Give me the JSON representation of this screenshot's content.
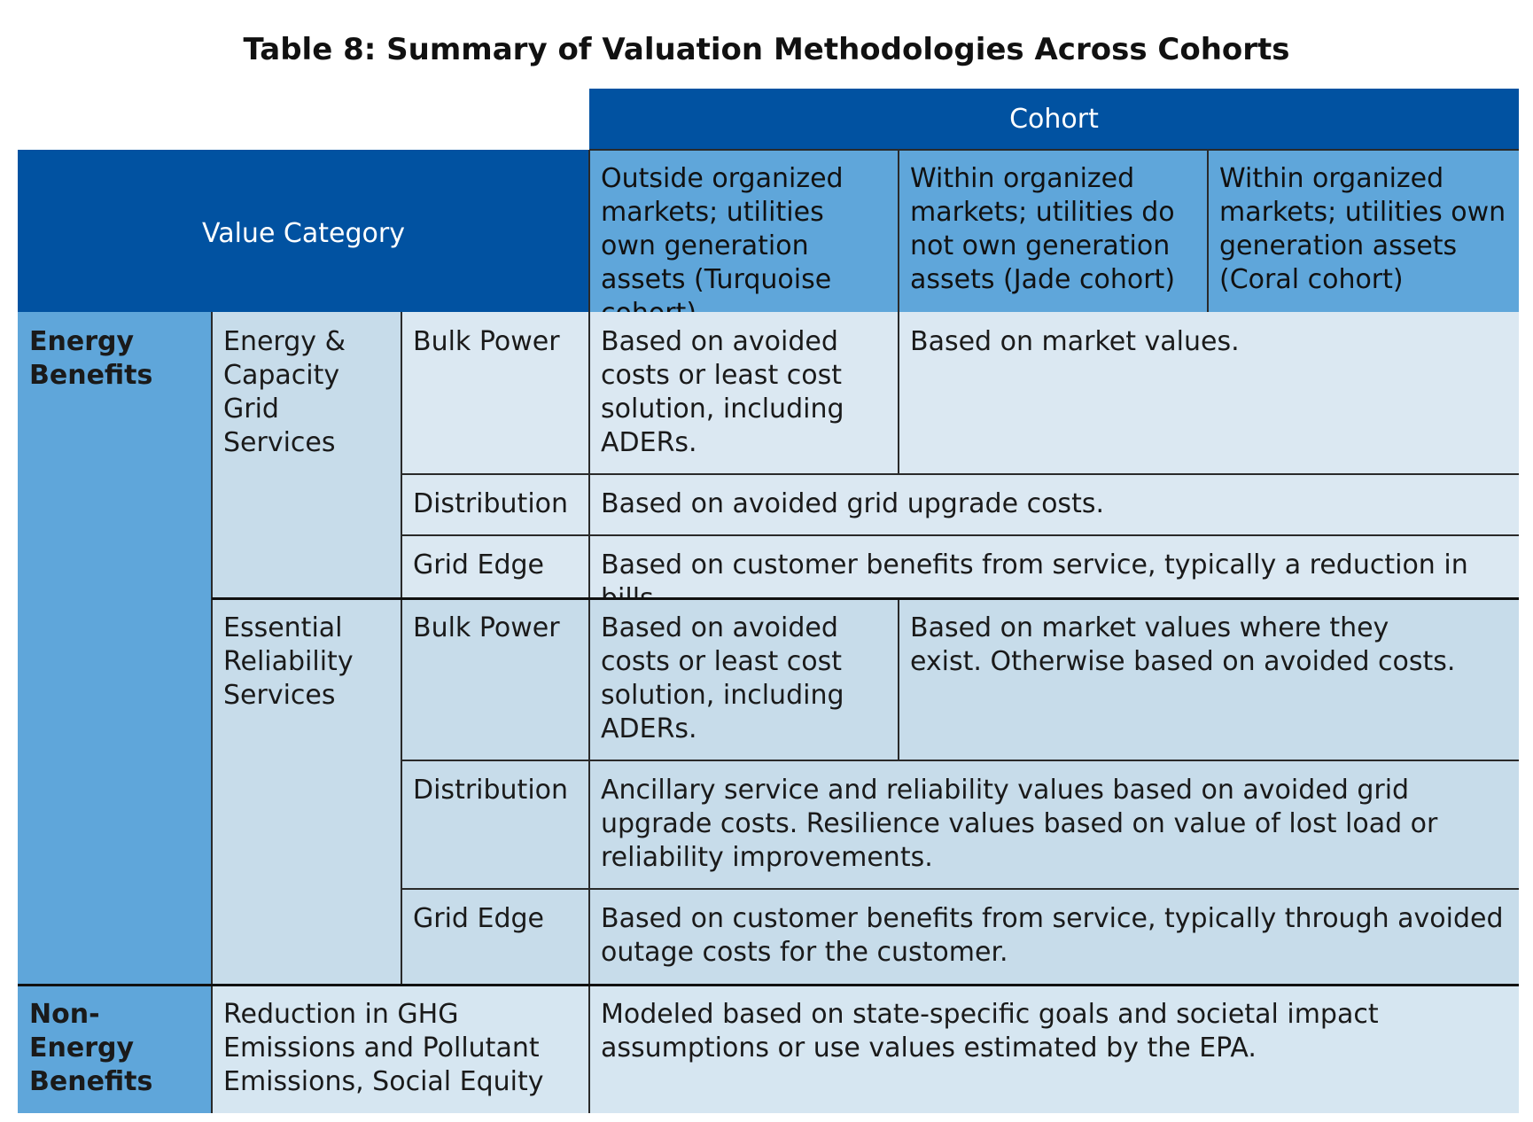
{
  "title": "Table 8: Summary of Valuation Methodologies Across Cohorts",
  "header": {
    "cohort": "Cohort",
    "value_category": "Value Category",
    "cohorts": [
      "Outside organized markets; utilities own generation assets (Turquoise cohort)",
      "Within organized markets; utilities do not own generation assets (Jade cohort)",
      "Within organized markets; utilities own generation assets (Coral cohort)"
    ]
  },
  "energy_benefits": {
    "label": "Energy Benefits",
    "groups": [
      {
        "label": "Energy & Capacity Grid Services",
        "rows": [
          {
            "service": "Bulk Power",
            "turquoise": "Based on avoided costs or least cost solution, including ADERs.",
            "market": "Based on market values."
          },
          {
            "service": "Distribution",
            "all": "Based on avoided grid upgrade costs."
          },
          {
            "service": "Grid Edge",
            "all": "Based on customer benefits from service, typically a reduction in bills."
          }
        ]
      },
      {
        "label": "Essential Reliability Services",
        "rows": [
          {
            "service": "Bulk Power",
            "turquoise": "Based on avoided costs or least cost solution, including ADERs.",
            "market": "Based on market values where they exist. Otherwise based on avoided costs."
          },
          {
            "service": "Distribution",
            "all": "Ancillary service and reliability values based on avoided grid upgrade costs. Resilience values based on value of lost load or reliability improvements."
          },
          {
            "service": "Grid Edge",
            "all": "Based on customer benefits from service, typically through avoided outage costs for the customer."
          }
        ]
      }
    ]
  },
  "non_energy_benefits": {
    "label": "Non-Energy Benefits",
    "category": "Reduction in GHG Emissions and Pollutant Emissions, Social Equity",
    "description": "Modeled based on state-specific goals and societal impact assumptions or use values estimated by the EPA."
  }
}
